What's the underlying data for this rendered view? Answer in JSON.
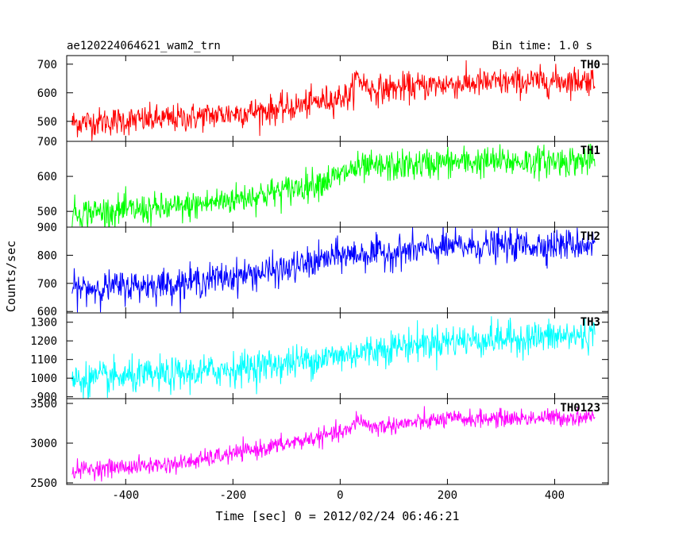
{
  "header": {
    "title": "ae120224064621_wam2_trn",
    "bin_time": "Bin time: 1.0 s"
  },
  "chart_data": {
    "type": "line",
    "title": "ae120224064621_wam2_trn",
    "subtitle": "Bin time: 1.0 s",
    "xlabel": "Time [sec] 0 = 2012/02/24 06:46:21",
    "ylabel": "Counts/sec",
    "xlim": [
      -510,
      500
    ],
    "x_ticks": [
      -400,
      -200,
      0,
      200,
      400
    ],
    "x_range_data": [
      -500,
      475
    ],
    "x_step": 1,
    "panels": [
      {
        "label": "TH0",
        "color": "#ff0000",
        "ylim": [
          430,
          730
        ],
        "y_ticks": [
          500,
          600,
          700
        ],
        "trend_knots": [
          [
            -500,
            495
          ],
          [
            -300,
            510
          ],
          [
            -100,
            545
          ],
          [
            0,
            585
          ],
          [
            20,
            590
          ],
          [
            30,
            655
          ],
          [
            60,
            610
          ],
          [
            200,
            630
          ],
          [
            475,
            645
          ]
        ],
        "noise_sd": 25
      },
      {
        "label": "TH1",
        "color": "#00ff00",
        "ylim": [
          455,
          700
        ],
        "y_ticks": [
          500,
          600,
          700
        ],
        "trend_knots": [
          [
            -500,
            495
          ],
          [
            -300,
            510
          ],
          [
            -100,
            560
          ],
          [
            0,
            600
          ],
          [
            20,
            620
          ],
          [
            200,
            640
          ],
          [
            475,
            645
          ]
        ],
        "noise_sd": 22
      },
      {
        "label": "TH2",
        "color": "#0000ff",
        "ylim": [
          595,
          900
        ],
        "y_ticks": [
          600,
          700,
          800,
          900
        ],
        "trend_knots": [
          [
            -500,
            680
          ],
          [
            -300,
            700
          ],
          [
            -100,
            750
          ],
          [
            0,
            800
          ],
          [
            100,
            810
          ],
          [
            200,
            830
          ],
          [
            475,
            840
          ]
        ],
        "noise_sd": 28
      },
      {
        "label": "TH3",
        "color": "#00ffff",
        "ylim": [
          890,
          1350
        ],
        "y_ticks": [
          900,
          1000,
          1100,
          1200,
          1300
        ],
        "trend_knots": [
          [
            -500,
            990
          ],
          [
            -300,
            1020
          ],
          [
            -100,
            1080
          ],
          [
            0,
            1120
          ],
          [
            100,
            1170
          ],
          [
            200,
            1200
          ],
          [
            475,
            1230
          ]
        ],
        "noise_sd": 45
      },
      {
        "label": "TH0123",
        "color": "#ff00ff",
        "ylim": [
          2480,
          3560
        ],
        "y_ticks": [
          2500,
          3000,
          3500
        ],
        "trend_knots": [
          [
            -500,
            2660
          ],
          [
            -300,
            2740
          ],
          [
            -100,
            2990
          ],
          [
            0,
            3130
          ],
          [
            20,
            3160
          ],
          [
            30,
            3310
          ],
          [
            60,
            3200
          ],
          [
            200,
            3300
          ],
          [
            475,
            3330
          ]
        ],
        "noise_sd": 55
      }
    ]
  }
}
